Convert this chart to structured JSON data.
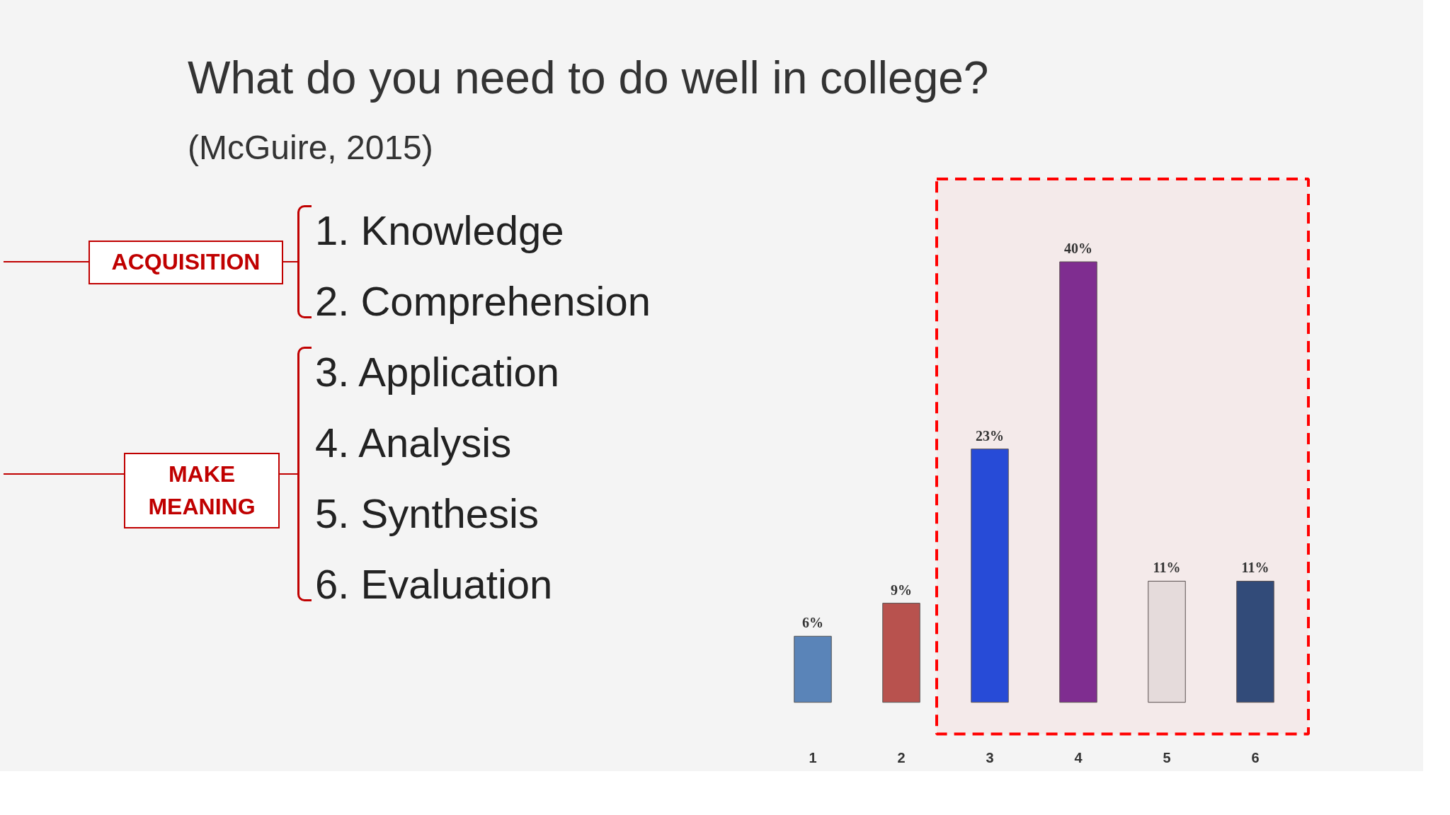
{
  "chart_data": {
    "type": "bar",
    "title": "What do you need to do well in college?",
    "subtitle": "(McGuire, 2015)",
    "categories": [
      "1",
      "2",
      "3",
      "4",
      "5",
      "6"
    ],
    "values": [
      6,
      9,
      23,
      40,
      11,
      11
    ],
    "colors": [
      "#5a84b8",
      "#b8524e",
      "#1f4fe0",
      "#7a2f96",
      "#e4e4e4",
      "#2a4f7e"
    ],
    "value_labels": [
      "6%",
      "9%",
      "23%",
      "40%",
      "11%",
      "11%"
    ],
    "annotations": [
      "1. Knowledge",
      "2. Comprehension",
      "3. Application",
      "4. Analysis",
      "5. Synthesis",
      "6. Evaluation",
      "ACQUISITION",
      "MAKE MEANING"
    ],
    "bands": [
      {
        "axis": "x",
        "from": "3",
        "to": "6",
        "color": "#ff0000"
      }
    ],
    "tick_labels": "x",
    "grid": false
  }
}
